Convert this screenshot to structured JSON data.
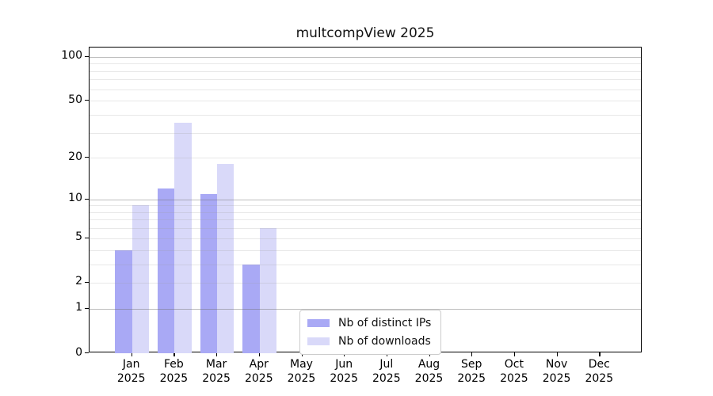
{
  "chart_data": {
    "type": "bar",
    "title": "multcompView 2025",
    "categories": [
      "Jan",
      "Feb",
      "Mar",
      "Apr",
      "May",
      "Jun",
      "Jul",
      "Aug",
      "Sep",
      "Oct",
      "Nov",
      "Dec"
    ],
    "x_year_label": "2025",
    "series": [
      {
        "name": "Nb of distinct IPs",
        "color": "#a9a9f5",
        "values": [
          4,
          12,
          11,
          3,
          0,
          0,
          0,
          0,
          0,
          0,
          0,
          0
        ]
      },
      {
        "name": "Nb of downloads",
        "color": "#d9d9f9",
        "values": [
          9,
          35,
          18,
          6,
          0,
          0,
          0,
          0,
          0,
          0,
          0,
          0
        ]
      }
    ],
    "yscale": "log1p",
    "ytick_labels": [
      0,
      1,
      2,
      5,
      10,
      20,
      50,
      100
    ],
    "minor_gridlines": [
      2,
      3,
      4,
      5,
      6,
      7,
      8,
      9,
      20,
      30,
      40,
      50,
      60,
      70,
      80,
      90
    ],
    "major_gridlines": [
      1,
      10,
      100
    ],
    "ylim": [
      0,
      115
    ],
    "grid": "on",
    "legend_position": "inside lower-center",
    "bar_group": "paired (IPs left, downloads right)"
  }
}
